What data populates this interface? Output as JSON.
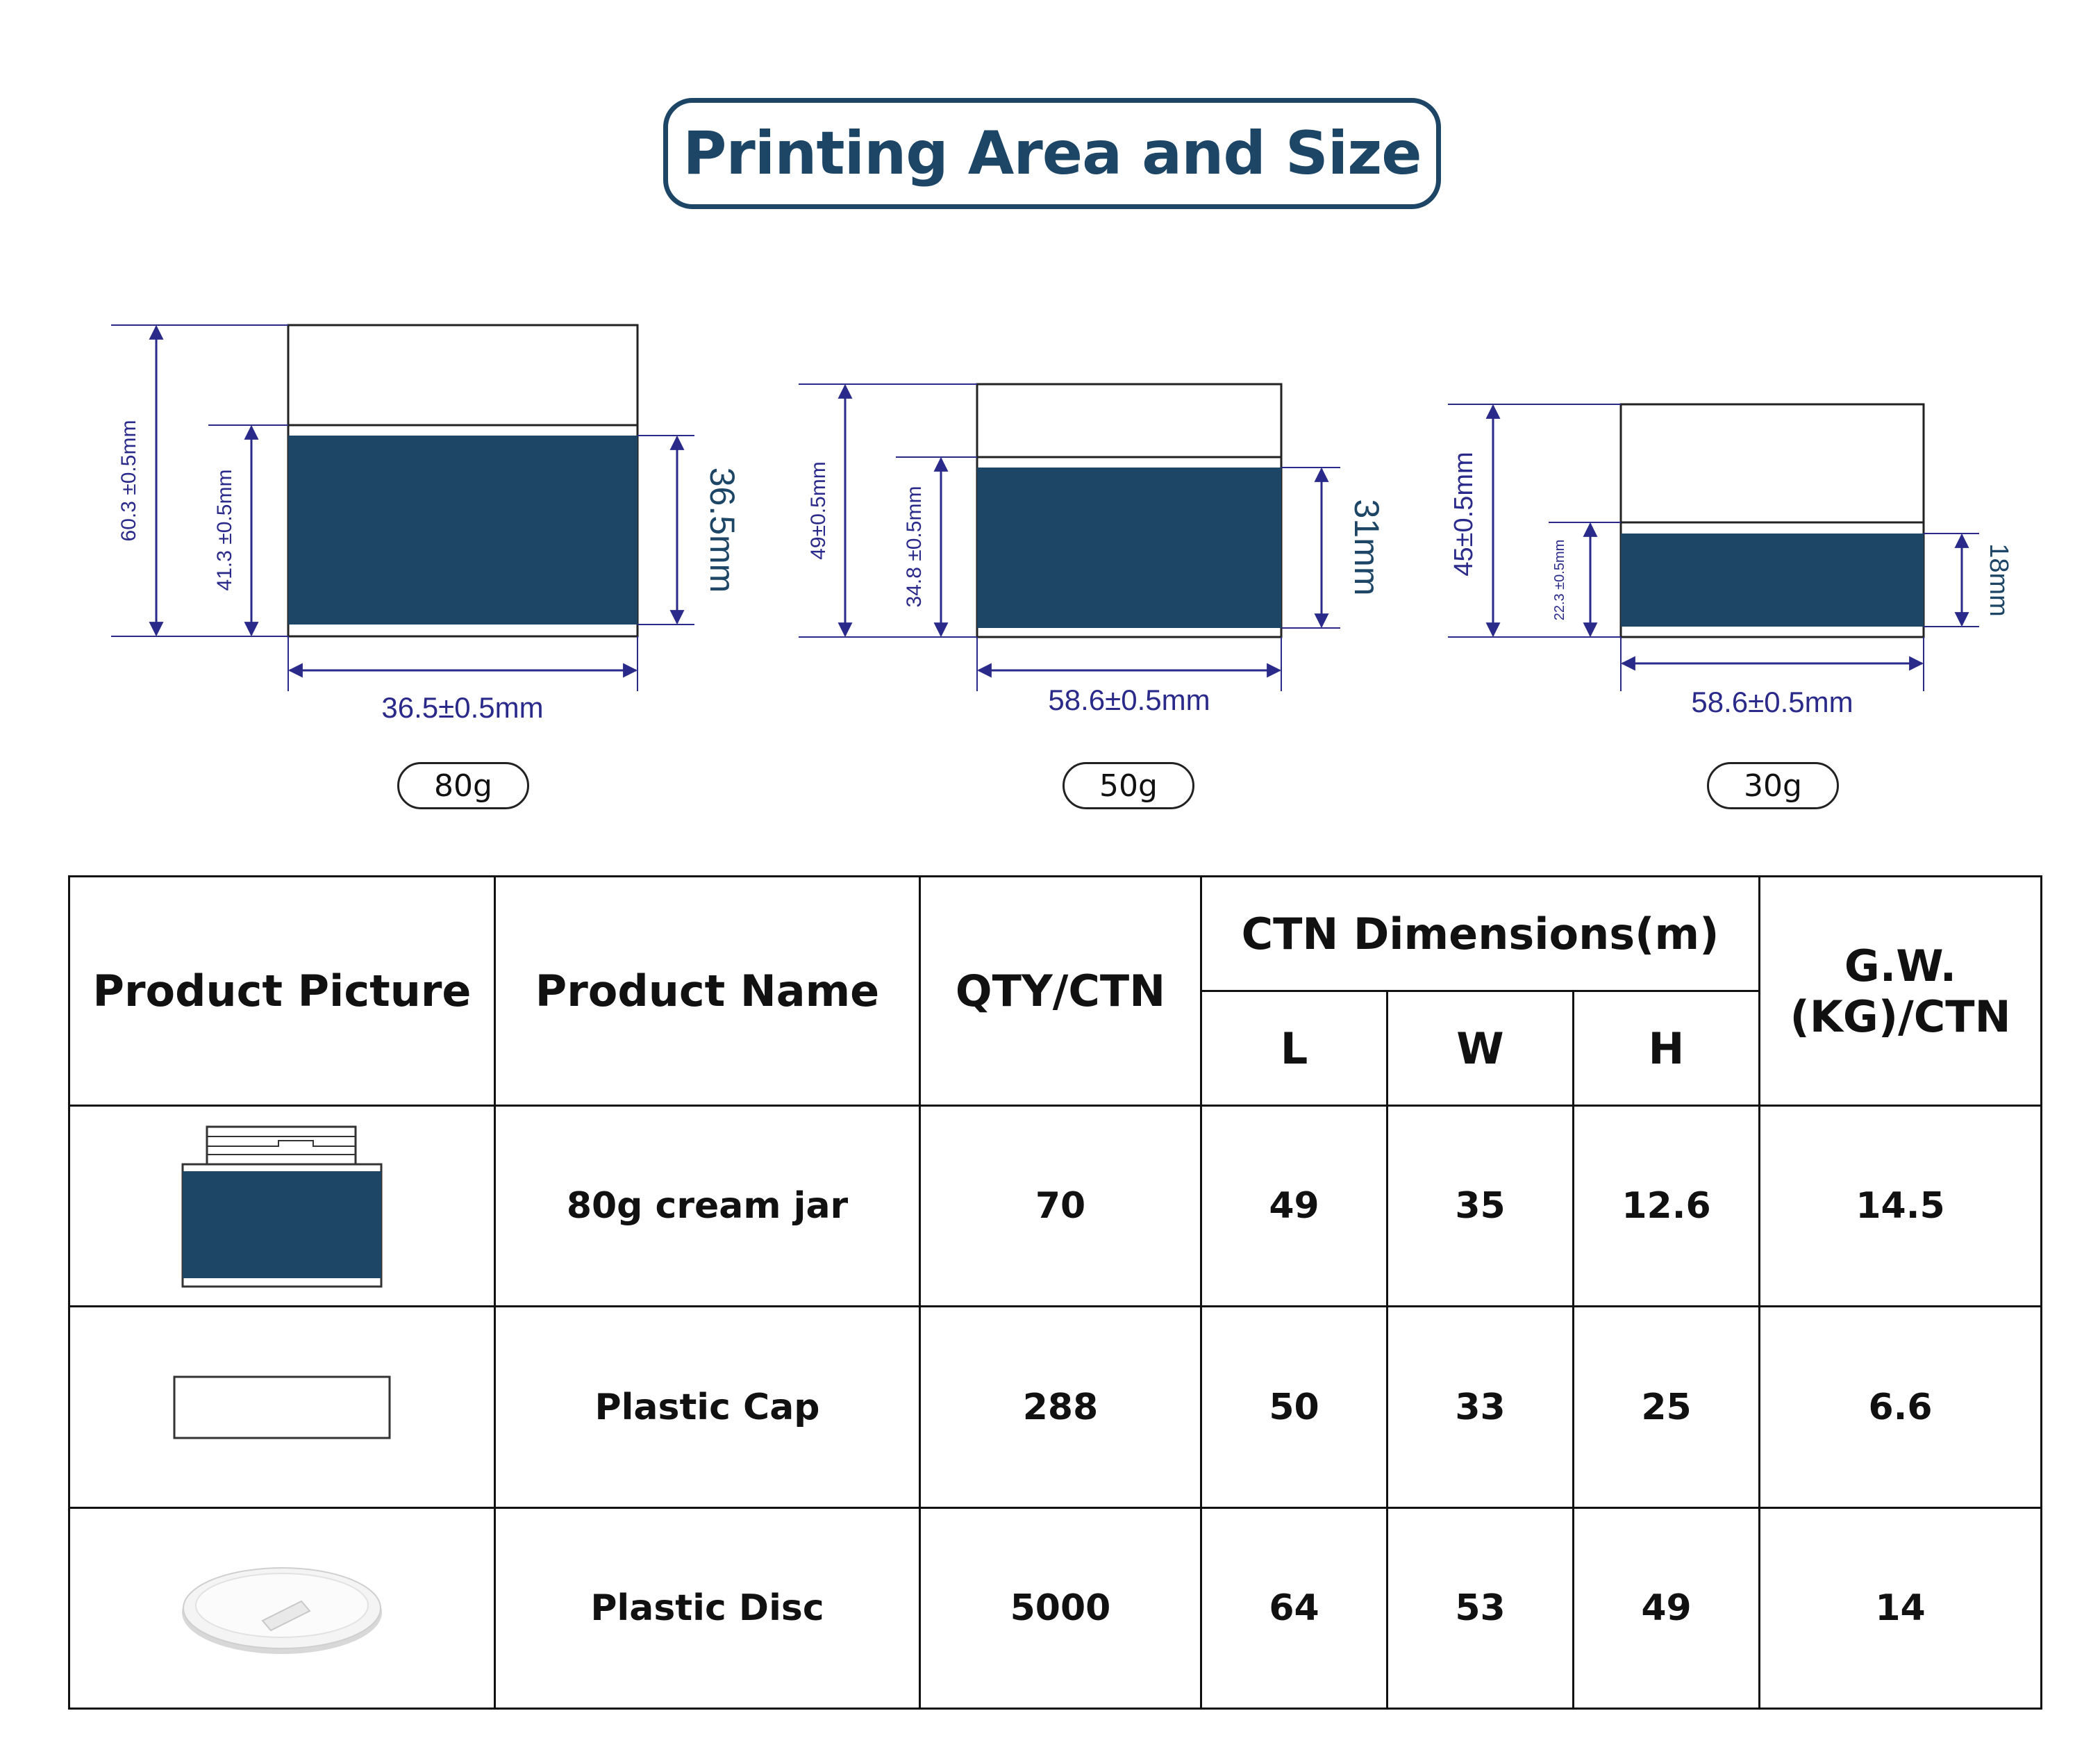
{
  "title": "Printing Area and Size",
  "colors": {
    "print_band": "#1c4566",
    "dimension_line": "#2a2a8a",
    "text": "#111111"
  },
  "jars": [
    {
      "weight": "80g",
      "total_height": "60.3 ±0.5mm",
      "print_zone_height": "41.3 ±0.5mm",
      "band_height": "36.5mm",
      "width": "36.5±0.5mm"
    },
    {
      "weight": "50g",
      "total_height": "49±0.5mm",
      "print_zone_height": "34.8 ±0.5mm",
      "band_height": "31mm",
      "width": "58.6±0.5mm"
    },
    {
      "weight": "30g",
      "total_height": "45±0.5mm",
      "print_zone_height": "22.3 ±0.5mm",
      "band_height": "18mm",
      "width": "58.6±0.5mm"
    }
  ],
  "table": {
    "headers": {
      "picture": "Product Picture",
      "name": "Product Name",
      "qty": "QTY/CTN",
      "dims": "CTN Dimensions(m)",
      "l": "L",
      "w": "W",
      "h": "H",
      "gw_line1": "G.W.",
      "gw_line2": "(KG)/CTN"
    },
    "rows": [
      {
        "picture": "cream-jar-icon",
        "name": "80g cream jar",
        "qty": "70",
        "l": "49",
        "w": "35",
        "h": "12.6",
        "gw": "14.5"
      },
      {
        "picture": "plastic-cap-icon",
        "name": "Plastic Cap",
        "qty": "288",
        "l": "50",
        "w": "33",
        "h": "25",
        "gw": "6.6"
      },
      {
        "picture": "plastic-disc-icon",
        "name": "Plastic Disc",
        "qty": "5000",
        "l": "64",
        "w": "53",
        "h": "49",
        "gw": "14"
      }
    ]
  }
}
